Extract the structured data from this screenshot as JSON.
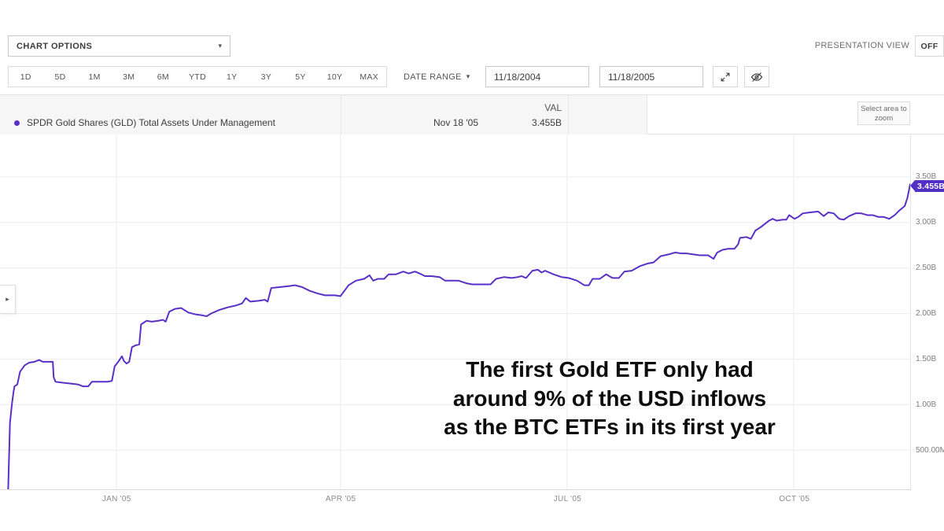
{
  "toolbar": {
    "chart_options_label": "CHART OPTIONS",
    "presentation_view_label": "PRESENTATION VIEW",
    "presentation_toggle": "OFF",
    "ranges": [
      "1D",
      "5D",
      "1M",
      "3M",
      "6M",
      "YTD",
      "1Y",
      "3Y",
      "5Y",
      "10Y",
      "MAX"
    ],
    "date_range_label": "DATE RANGE",
    "date_from": "11/18/2004",
    "date_to": "11/18/2005"
  },
  "legend": {
    "series_label": "SPDR Gold Shares (GLD) Total Assets Under Management",
    "hover_date": "Nov 18 '05",
    "val_header": "VAL",
    "val_value": "3.455B"
  },
  "chart": {
    "select_area_button": "Select area to zoom",
    "badge_label": "3.455B",
    "line_color": "#5a2fc8",
    "grid_color": "#ececec"
  },
  "overlay": {
    "lines": [
      "The first Gold ETF only had",
      "around 9% of the USD inflows",
      "as the BTC ETFs in its first year"
    ]
  },
  "chart_data": {
    "type": "line",
    "title": "SPDR Gold Shares (GLD) Total Assets Under Management",
    "series_name": "SPDR Gold Shares (GLD) Total Assets Under Management",
    "date_start": "11/18/2004",
    "date_end": "11/18/2005",
    "last_value_label": "3.455B",
    "unit": "USD billions",
    "ylim": [
      0,
      4.0
    ],
    "grid": true,
    "legend_position": "top-left",
    "y_ticks": [
      {
        "label": "3.50B",
        "value": 3.5
      },
      {
        "label": "3.00B",
        "value": 3.0
      },
      {
        "label": "2.50B",
        "value": 2.5
      },
      {
        "label": "2.00B",
        "value": 2.0
      },
      {
        "label": "1.50B",
        "value": 1.5
      },
      {
        "label": "1.00B",
        "value": 1.0
      },
      {
        "label": "500.00M",
        "value": 0.5
      }
    ],
    "x_ticks": [
      {
        "label": "JAN '05",
        "f": 0.128
      },
      {
        "label": "APR '05",
        "f": 0.374
      },
      {
        "label": "JUL '05",
        "f": 0.623
      },
      {
        "label": "OCT '05",
        "f": 0.872
      }
    ],
    "points": [
      [
        0.009,
        0.07
      ],
      [
        0.01,
        0.45
      ],
      [
        0.011,
        0.8
      ],
      [
        0.013,
        1.0
      ],
      [
        0.015,
        1.15
      ],
      [
        0.016,
        1.2
      ],
      [
        0.019,
        1.22
      ],
      [
        0.022,
        1.36
      ],
      [
        0.027,
        1.43
      ],
      [
        0.032,
        1.46
      ],
      [
        0.038,
        1.47
      ],
      [
        0.043,
        1.49
      ],
      [
        0.047,
        1.47
      ],
      [
        0.054,
        1.47
      ],
      [
        0.058,
        1.47
      ],
      [
        0.059,
        1.3
      ],
      [
        0.061,
        1.25
      ],
      [
        0.069,
        1.24
      ],
      [
        0.078,
        1.23
      ],
      [
        0.086,
        1.22
      ],
      [
        0.091,
        1.2
      ],
      [
        0.097,
        1.2
      ],
      [
        0.101,
        1.25
      ],
      [
        0.11,
        1.25
      ],
      [
        0.118,
        1.25
      ],
      [
        0.123,
        1.26
      ],
      [
        0.126,
        1.42
      ],
      [
        0.13,
        1.47
      ],
      [
        0.134,
        1.53
      ],
      [
        0.136,
        1.48
      ],
      [
        0.139,
        1.45
      ],
      [
        0.142,
        1.47
      ],
      [
        0.145,
        1.63
      ],
      [
        0.149,
        1.65
      ],
      [
        0.153,
        1.66
      ],
      [
        0.155,
        1.88
      ],
      [
        0.161,
        1.92
      ],
      [
        0.167,
        1.91
      ],
      [
        0.174,
        1.92
      ],
      [
        0.179,
        1.93
      ],
      [
        0.182,
        1.91
      ],
      [
        0.186,
        2.02
      ],
      [
        0.192,
        2.05
      ],
      [
        0.199,
        2.06
      ],
      [
        0.207,
        2.01
      ],
      [
        0.215,
        1.99
      ],
      [
        0.222,
        1.98
      ],
      [
        0.227,
        1.97
      ],
      [
        0.232,
        2.0
      ],
      [
        0.241,
        2.04
      ],
      [
        0.251,
        2.07
      ],
      [
        0.26,
        2.09
      ],
      [
        0.266,
        2.11
      ],
      [
        0.27,
        2.17
      ],
      [
        0.275,
        2.13
      ],
      [
        0.284,
        2.14
      ],
      [
        0.291,
        2.15
      ],
      [
        0.294,
        2.13
      ],
      [
        0.298,
        2.28
      ],
      [
        0.307,
        2.29
      ],
      [
        0.317,
        2.3
      ],
      [
        0.324,
        2.31
      ],
      [
        0.332,
        2.29
      ],
      [
        0.34,
        2.25
      ],
      [
        0.349,
        2.22
      ],
      [
        0.357,
        2.2
      ],
      [
        0.368,
        2.2
      ],
      [
        0.374,
        2.19
      ],
      [
        0.383,
        2.31
      ],
      [
        0.391,
        2.36
      ],
      [
        0.4,
        2.38
      ],
      [
        0.406,
        2.42
      ],
      [
        0.41,
        2.36
      ],
      [
        0.415,
        2.38
      ],
      [
        0.422,
        2.38
      ],
      [
        0.427,
        2.43
      ],
      [
        0.435,
        2.43
      ],
      [
        0.443,
        2.46
      ],
      [
        0.449,
        2.44
      ],
      [
        0.456,
        2.46
      ],
      [
        0.463,
        2.43
      ],
      [
        0.467,
        2.41
      ],
      [
        0.474,
        2.41
      ],
      [
        0.483,
        2.4
      ],
      [
        0.489,
        2.36
      ],
      [
        0.498,
        2.36
      ],
      [
        0.504,
        2.36
      ],
      [
        0.513,
        2.33
      ],
      [
        0.519,
        2.32
      ],
      [
        0.529,
        2.32
      ],
      [
        0.539,
        2.32
      ],
      [
        0.545,
        2.38
      ],
      [
        0.554,
        2.4
      ],
      [
        0.562,
        2.39
      ],
      [
        0.569,
        2.4
      ],
      [
        0.573,
        2.41
      ],
      [
        0.578,
        2.39
      ],
      [
        0.585,
        2.47
      ],
      [
        0.591,
        2.48
      ],
      [
        0.595,
        2.45
      ],
      [
        0.599,
        2.47
      ],
      [
        0.608,
        2.43
      ],
      [
        0.617,
        2.4
      ],
      [
        0.625,
        2.39
      ],
      [
        0.634,
        2.36
      ],
      [
        0.642,
        2.31
      ],
      [
        0.647,
        2.31
      ],
      [
        0.651,
        2.38
      ],
      [
        0.659,
        2.38
      ],
      [
        0.666,
        2.43
      ],
      [
        0.673,
        2.39
      ],
      [
        0.68,
        2.39
      ],
      [
        0.686,
        2.46
      ],
      [
        0.694,
        2.47
      ],
      [
        0.703,
        2.52
      ],
      [
        0.712,
        2.55
      ],
      [
        0.718,
        2.56
      ],
      [
        0.726,
        2.63
      ],
      [
        0.735,
        2.65
      ],
      [
        0.742,
        2.67
      ],
      [
        0.748,
        2.66
      ],
      [
        0.754,
        2.66
      ],
      [
        0.761,
        2.65
      ],
      [
        0.769,
        2.64
      ],
      [
        0.778,
        2.64
      ],
      [
        0.784,
        2.6
      ],
      [
        0.788,
        2.67
      ],
      [
        0.794,
        2.7
      ],
      [
        0.8,
        2.71
      ],
      [
        0.807,
        2.71
      ],
      [
        0.811,
        2.76
      ],
      [
        0.813,
        2.83
      ],
      [
        0.82,
        2.84
      ],
      [
        0.825,
        2.82
      ],
      [
        0.83,
        2.91
      ],
      [
        0.836,
        2.95
      ],
      [
        0.845,
        3.02
      ],
      [
        0.849,
        3.04
      ],
      [
        0.853,
        3.02
      ],
      [
        0.86,
        3.03
      ],
      [
        0.864,
        3.03
      ],
      [
        0.867,
        3.08
      ],
      [
        0.873,
        3.04
      ],
      [
        0.877,
        3.06
      ],
      [
        0.882,
        3.1
      ],
      [
        0.89,
        3.11
      ],
      [
        0.899,
        3.12
      ],
      [
        0.905,
        3.07
      ],
      [
        0.91,
        3.11
      ],
      [
        0.916,
        3.1
      ],
      [
        0.922,
        3.04
      ],
      [
        0.927,
        3.03
      ],
      [
        0.933,
        3.07
      ],
      [
        0.94,
        3.1
      ],
      [
        0.946,
        3.1
      ],
      [
        0.953,
        3.08
      ],
      [
        0.959,
        3.08
      ],
      [
        0.965,
        3.06
      ],
      [
        0.971,
        3.06
      ],
      [
        0.977,
        3.04
      ],
      [
        0.983,
        3.08
      ],
      [
        0.988,
        3.13
      ],
      [
        0.994,
        3.18
      ],
      [
        0.997,
        3.27
      ],
      [
        1.0,
        3.42
      ]
    ]
  }
}
